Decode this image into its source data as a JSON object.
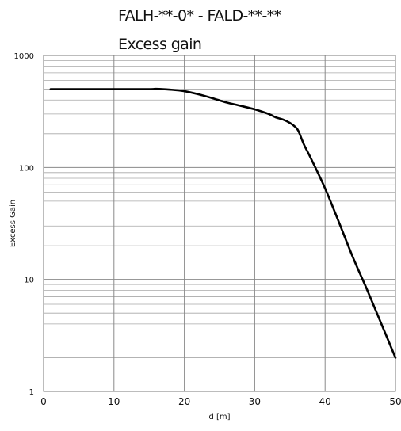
{
  "chart_data": {
    "type": "line",
    "title": "FALH-**-0* - FALD-**-**",
    "subtitle": "Excess gain",
    "xlabel": "d [m]",
    "ylabel": "Excess Gain",
    "xlim": [
      0,
      50
    ],
    "ylim": [
      1,
      1000
    ],
    "yscale": "log",
    "grid": true,
    "x_ticks": [
      0,
      10,
      20,
      30,
      40,
      50
    ],
    "x_tick_labels": [
      "0",
      "10",
      "20",
      "30",
      "40",
      "50"
    ],
    "y_ticks": [
      1,
      10,
      100,
      1000
    ],
    "y_tick_labels": [
      "1",
      "10",
      "100",
      "1000"
    ],
    "series": [
      {
        "x": [
          1,
          5,
          10,
          15,
          16,
          18,
          20,
          22,
          24,
          26,
          28,
          30,
          32,
          33,
          34,
          35,
          35.7,
          36.2,
          37,
          38,
          40,
          42,
          44,
          46,
          48,
          50
        ],
        "values": [
          500,
          500,
          500,
          500,
          503,
          495,
          480,
          450,
          415,
          380,
          355,
          330,
          300,
          280,
          268,
          250,
          232,
          212,
          160,
          120,
          65,
          32,
          15.5,
          8,
          4,
          2
        ],
        "color": "#000000"
      }
    ]
  }
}
